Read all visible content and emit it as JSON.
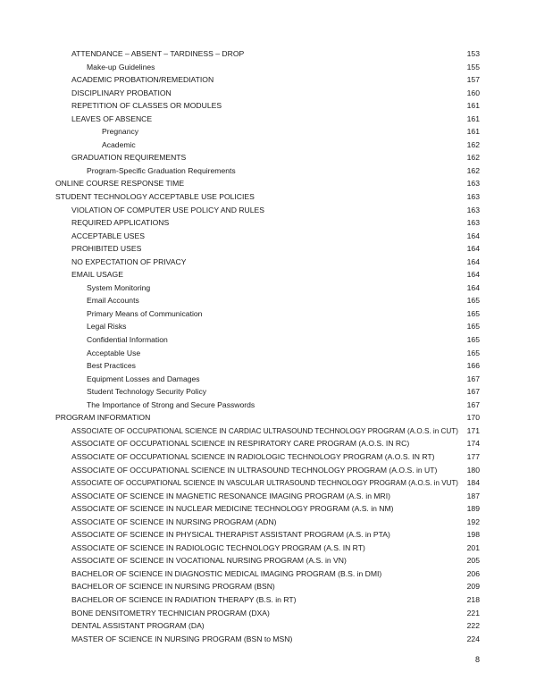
{
  "toc": [
    {
      "level": 1,
      "title": "ATTENDANCE – ABSENT – TARDINESS – DROP",
      "page": "153"
    },
    {
      "level": 2,
      "title": "Make-up Guidelines",
      "page": "155"
    },
    {
      "level": 1,
      "title": "ACADEMIC PROBATION/REMEDIATION",
      "page": "157"
    },
    {
      "level": 1,
      "title": "DISCIPLINARY PROBATION",
      "page": "160"
    },
    {
      "level": 1,
      "title": "REPETITION OF CLASSES OR MODULES",
      "page": "161"
    },
    {
      "level": 1,
      "title": "LEAVES OF ABSENCE",
      "page": "161"
    },
    {
      "level": 3,
      "title": "Pregnancy",
      "page": "161"
    },
    {
      "level": 3,
      "title": "Academic",
      "page": "162"
    },
    {
      "level": 1,
      "title": "GRADUATION REQUIREMENTS",
      "page": "162"
    },
    {
      "level": 2,
      "title": "Program-Specific Graduation Requirements",
      "page": "162"
    },
    {
      "level": 0,
      "title": "ONLINE COURSE RESPONSE TIME",
      "page": "163"
    },
    {
      "level": 0,
      "title": "STUDENT TECHNOLOGY ACCEPTABLE USE POLICIES",
      "page": "163"
    },
    {
      "level": 1,
      "title": "VIOLATION OF COMPUTER USE POLICY AND RULES",
      "page": "163"
    },
    {
      "level": 1,
      "title": "REQUIRED APPLICATIONS",
      "page": "163"
    },
    {
      "level": 1,
      "title": "ACCEPTABLE USES",
      "page": "164"
    },
    {
      "level": 1,
      "title": "PROHIBITED USES",
      "page": "164"
    },
    {
      "level": 1,
      "title": "NO EXPECTATION OF PRIVACY",
      "page": "164"
    },
    {
      "level": 1,
      "title": "EMAIL USAGE",
      "page": "164"
    },
    {
      "level": 2,
      "title": "System Monitoring",
      "page": "164"
    },
    {
      "level": 2,
      "title": "Email Accounts",
      "page": "165"
    },
    {
      "level": 2,
      "title": "Primary Means of Communication",
      "page": "165"
    },
    {
      "level": 2,
      "title": "Legal Risks",
      "page": "165"
    },
    {
      "level": 2,
      "title": "Confidential Information",
      "page": "165"
    },
    {
      "level": 2,
      "title": "Acceptable Use",
      "page": "165"
    },
    {
      "level": 2,
      "title": "Best Practices",
      "page": "166"
    },
    {
      "level": 2,
      "title": "Equipment Losses and Damages",
      "page": "167"
    },
    {
      "level": 2,
      "title": "Student Technology Security Policy",
      "page": "167"
    },
    {
      "level": 2,
      "title": "The Importance of Strong and Secure Passwords",
      "page": "167"
    },
    {
      "level": 0,
      "title": "PROGRAM INFORMATION",
      "page": "170"
    },
    {
      "level": 1,
      "title": "ASSOCIATE OF OCCUPATIONAL SCIENCE IN CARDIAC ULTRASOUND TECHNOLOGY PROGRAM (A.O.S. in CUT)",
      "page": "171"
    },
    {
      "level": 1,
      "title": "ASSOCIATE OF OCCUPATIONAL SCIENCE IN RESPIRATORY CARE PROGRAM (A.O.S. IN RC)",
      "page": "174"
    },
    {
      "level": 1,
      "title": "ASSOCIATE OF OCCUPATIONAL SCIENCE IN RADIOLOGIC TECHNOLOGY PROGRAM (A.O.S. IN RT)",
      "page": "177"
    },
    {
      "level": 1,
      "title": "ASSOCIATE OF OCCUPATIONAL SCIENCE IN ULTRASOUND TECHNOLOGY PROGRAM (A.O.S. in UT)",
      "page": "180"
    },
    {
      "level": 1,
      "title": "ASSOCIATE OF OCCUPATIONAL SCIENCE IN VASCULAR ULTRASOUND TECHNOLOGY PROGRAM (A.O.S. in VUT)",
      "page": "184"
    },
    {
      "level": 1,
      "title": "ASSOCIATE OF SCIENCE IN MAGNETIC RESONANCE IMAGING PROGRAM (A.S. in MRI)",
      "page": "187"
    },
    {
      "level": 1,
      "title": "ASSOCIATE OF SCIENCE IN NUCLEAR MEDICINE TECHNOLOGY PROGRAM (A.S. in NM)",
      "page": "189"
    },
    {
      "level": 1,
      "title": "ASSOCIATE OF SCIENCE IN NURSING PROGRAM (ADN)",
      "page": "192"
    },
    {
      "level": 1,
      "title": "ASSOCIATE OF SCIENCE IN PHYSICAL THERAPIST ASSISTANT PROGRAM (A.S. in PTA)",
      "page": "198"
    },
    {
      "level": 1,
      "title": "ASSOCIATE OF SCIENCE IN RADIOLOGIC TECHNOLOGY PROGRAM (A.S. IN RT)",
      "page": "201"
    },
    {
      "level": 1,
      "title": "ASSOCIATE OF SCIENCE IN VOCATIONAL NURSING PROGRAM (A.S. in VN)",
      "page": "205"
    },
    {
      "level": 1,
      "title": "BACHELOR OF SCIENCE IN DIAGNOSTIC MEDICAL IMAGING PROGRAM (B.S. in DMI)",
      "page": "206"
    },
    {
      "level": 1,
      "title": "BACHELOR OF SCIENCE IN NURSING PROGRAM (BSN)",
      "page": "209"
    },
    {
      "level": 1,
      "title": "BACHELOR OF SCIENCE IN RADIATION THERAPY (B.S. in RT)",
      "page": "218"
    },
    {
      "level": 1,
      "title": "BONE DENSITOMETRY TECHNICIAN PROGRAM (DXA)",
      "page": "221"
    },
    {
      "level": 1,
      "title": "DENTAL ASSISTANT PROGRAM (DA)",
      "page": "222"
    },
    {
      "level": 1,
      "title": "MASTER OF SCIENCE IN NURSING PROGRAM (BSN to MSN)",
      "page": "224"
    }
  ],
  "footer": {
    "page_number": "8"
  }
}
